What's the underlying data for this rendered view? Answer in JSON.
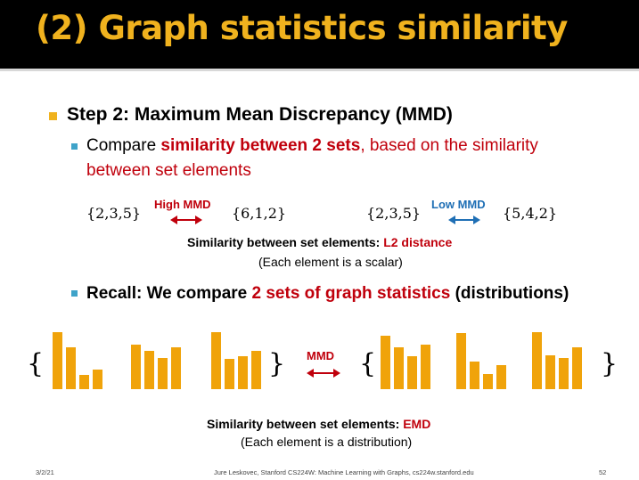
{
  "title": "(2) Graph statistics similarity",
  "bullet1": {
    "text": "Step 2: Maximum Mean Discrepancy (MMD)"
  },
  "bullet2": {
    "prefix": "Compare ",
    "highlight": "similarity between 2 sets",
    "suffix": ", based on the similarity",
    "line2": "between set elements"
  },
  "example": {
    "left_set_a": "{2,3,5}",
    "left_set_b": "{6,1,2}",
    "left_label": "High MMD",
    "right_set_a": "{2,3,5}",
    "right_set_b": "{5,4,2}",
    "right_label": "Low MMD",
    "similarity_prefix": "Similarity between set elements: ",
    "similarity_metric": "L2 distance",
    "note": "(Each element is a scalar)"
  },
  "bullet3": {
    "prefix": "Recall: We compare ",
    "highlight": "2 sets of graph statistics",
    "suffix": " (distributions)"
  },
  "distributions": {
    "open_brace": "{",
    "close_brace": "}",
    "mmd_label": "MMD",
    "set_a": [
      [
        1.0,
        0.73,
        0.25,
        0.35
      ],
      [
        0.78,
        0.67,
        0.55,
        0.73
      ],
      [
        1.0,
        0.53,
        0.58,
        0.67
      ]
    ],
    "set_b": [
      [
        0.93,
        0.74,
        0.58,
        0.78
      ],
      [
        0.98,
        0.49,
        0.27,
        0.42
      ],
      [
        1.0,
        0.59,
        0.55,
        0.74
      ]
    ],
    "similarity_prefix": "Similarity between set elements: ",
    "similarity_metric": "EMD",
    "note": "(Each element is a distribution)"
  },
  "footer": {
    "date": "3/2/21",
    "credit": "Jure Leskovec, Stanford CS224W: Machine Learning with Graphs, cs224w.stanford.edu",
    "page": "52"
  },
  "colors": {
    "title": "#f0b21e",
    "accent_red": "#c0000c",
    "accent_blue": "#1f6fb5",
    "bars": "#f0a30a"
  }
}
